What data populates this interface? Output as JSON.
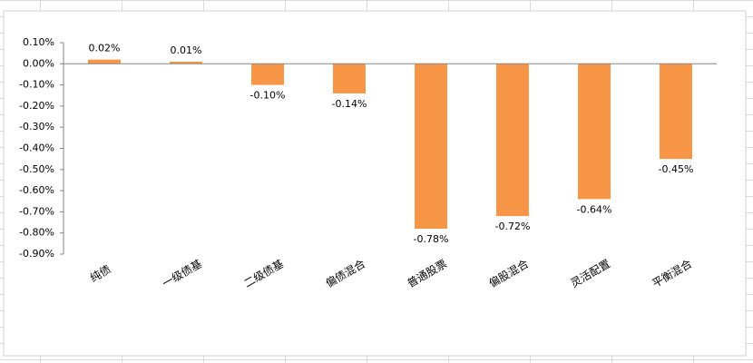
{
  "chart_data": {
    "type": "bar",
    "categories": [
      "纯债",
      "一级债基",
      "二级债基",
      "偏债混合",
      "普通股票",
      "偏股混合",
      "灵活配置",
      "平衡混合"
    ],
    "values": [
      0.02,
      0.01,
      -0.1,
      -0.14,
      -0.78,
      -0.72,
      -0.64,
      -0.45
    ],
    "value_labels": [
      "0.02%",
      "0.01%",
      "-0.10%",
      "-0.14%",
      "-0.78%",
      "-0.72%",
      "-0.64%",
      "-0.45%"
    ],
    "color": "#f79646",
    "ylim": [
      -0.9,
      0.1
    ],
    "yticks": [
      {
        "value": 0.1,
        "label": "0.10%"
      },
      {
        "value": 0,
        "label": "0.00%"
      },
      {
        "value": -0.1,
        "label": "-0.10%"
      },
      {
        "value": -0.2,
        "label": "-0.20%"
      },
      {
        "value": -0.3,
        "label": "-0.30%"
      },
      {
        "value": -0.4,
        "label": "-0.40%"
      },
      {
        "value": -0.5,
        "label": "-0.50%"
      },
      {
        "value": -0.6,
        "label": "-0.60%"
      },
      {
        "value": -0.7,
        "label": "-0.70%"
      },
      {
        "value": -0.8,
        "label": "-0.80%"
      },
      {
        "value": -0.9,
        "label": "-0.90%"
      }
    ],
    "grid": false
  }
}
